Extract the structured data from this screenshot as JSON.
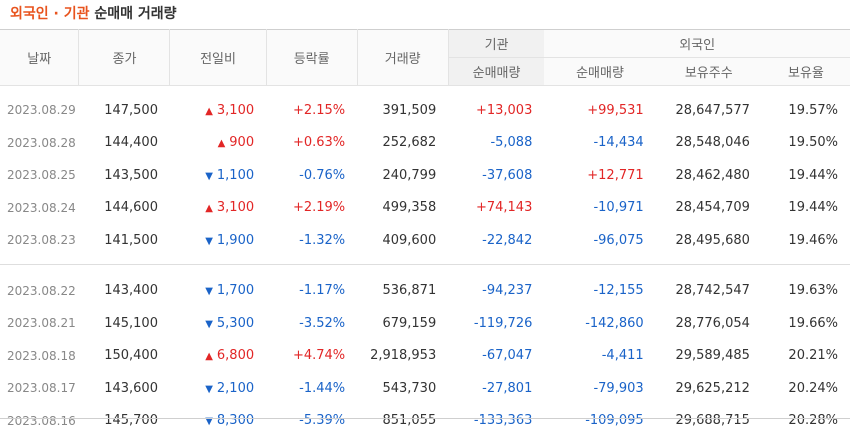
{
  "title": {
    "highlight": "외국인 · 기관",
    "rest": " 순매매 거래량"
  },
  "headers": {
    "date": "날짜",
    "close": "종가",
    "change": "전일비",
    "rate": "등락률",
    "volume": "거래량",
    "inst_group": "기관",
    "inst_net": "순매매량",
    "foreign_group": "외국인",
    "foreign_net": "순매매량",
    "foreign_holdings": "보유주수",
    "foreign_ratio": "보유율"
  },
  "colors": {
    "up": "#e22626",
    "down": "#1a63c8",
    "title_accent": "#e8541e"
  },
  "icons": {
    "up": "triangle-up-icon",
    "down": "triangle-down-icon"
  },
  "rows": [
    {
      "date": "2023.08.29",
      "close": "147,500",
      "dir": "up",
      "change": "3,100",
      "rate": "+2.15%",
      "volume": "391,509",
      "inst": "+13,003",
      "foreign": "+99,531",
      "holdings": "28,647,577",
      "ratio": "19.57%"
    },
    {
      "date": "2023.08.28",
      "close": "144,400",
      "dir": "up",
      "change": "900",
      "rate": "+0.63%",
      "volume": "252,682",
      "inst": "-5,088",
      "foreign": "-14,434",
      "holdings": "28,548,046",
      "ratio": "19.50%"
    },
    {
      "date": "2023.08.25",
      "close": "143,500",
      "dir": "down",
      "change": "1,100",
      "rate": "-0.76%",
      "volume": "240,799",
      "inst": "-37,608",
      "foreign": "+12,771",
      "holdings": "28,462,480",
      "ratio": "19.44%"
    },
    {
      "date": "2023.08.24",
      "close": "144,600",
      "dir": "up",
      "change": "3,100",
      "rate": "+2.19%",
      "volume": "499,358",
      "inst": "+74,143",
      "foreign": "-10,971",
      "holdings": "28,454,709",
      "ratio": "19.44%"
    },
    {
      "date": "2023.08.23",
      "close": "141,500",
      "dir": "down",
      "change": "1,900",
      "rate": "-1.32%",
      "volume": "409,600",
      "inst": "-22,842",
      "foreign": "-96,075",
      "holdings": "28,495,680",
      "ratio": "19.46%"
    },
    {
      "date": "2023.08.22",
      "close": "143,400",
      "dir": "down",
      "change": "1,700",
      "rate": "-1.17%",
      "volume": "536,871",
      "inst": "-94,237",
      "foreign": "-12,155",
      "holdings": "28,742,547",
      "ratio": "19.63%"
    },
    {
      "date": "2023.08.21",
      "close": "145,100",
      "dir": "down",
      "change": "5,300",
      "rate": "-3.52%",
      "volume": "679,159",
      "inst": "-119,726",
      "foreign": "-142,860",
      "holdings": "28,776,054",
      "ratio": "19.66%"
    },
    {
      "date": "2023.08.18",
      "close": "150,400",
      "dir": "up",
      "change": "6,800",
      "rate": "+4.74%",
      "volume": "2,918,953",
      "inst": "-67,047",
      "foreign": "-4,411",
      "holdings": "29,589,485",
      "ratio": "20.21%"
    },
    {
      "date": "2023.08.17",
      "close": "143,600",
      "dir": "down",
      "change": "2,100",
      "rate": "-1.44%",
      "volume": "543,730",
      "inst": "-27,801",
      "foreign": "-79,903",
      "holdings": "29,625,212",
      "ratio": "20.24%"
    },
    {
      "date": "2023.08.16",
      "close": "145,700",
      "dir": "down",
      "change": "8,300",
      "rate": "-5.39%",
      "volume": "851,055",
      "inst": "-133,363",
      "foreign": "-109,095",
      "holdings": "29,688,715",
      "ratio": "20.28%"
    }
  ]
}
